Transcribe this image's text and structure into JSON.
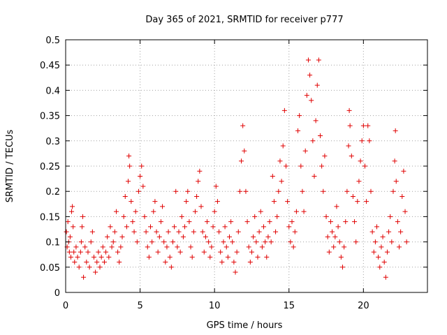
{
  "chart_data": {
    "type": "scatter",
    "title": "Day 365 of 2021, SRMTID for receiver p777",
    "xlabel": "GPS time / hours",
    "ylabel": "SRMTID / TECUs",
    "xlim": [
      0,
      24.3
    ],
    "ylim": [
      0,
      0.5
    ],
    "x_ticks": [
      0,
      5,
      10,
      15,
      20
    ],
    "x_tick_labels": [
      "0",
      "5",
      "10",
      "15",
      "20"
    ],
    "y_ticks": [
      0,
      0.05,
      0.1,
      0.15,
      0.2,
      0.25,
      0.3,
      0.35,
      0.4,
      0.45,
      0.5
    ],
    "y_tick_labels": [
      "0",
      "0.05",
      "0.1",
      "0.15",
      "0.2",
      "0.25",
      "0.3",
      "0.35",
      "0.4",
      "0.45",
      "0.5"
    ],
    "grid": true,
    "marker": "+",
    "color": "#e00000",
    "series": [
      {
        "name": "SRMTID",
        "points": [
          [
            0.05,
            0.12
          ],
          [
            0.1,
            0.09
          ],
          [
            0.15,
            0.14
          ],
          [
            0.2,
            0.1
          ],
          [
            0.25,
            0.08
          ],
          [
            0.3,
            0.11
          ],
          [
            0.35,
            0.07
          ],
          [
            0.4,
            0.16
          ],
          [
            0.45,
            0.17
          ],
          [
            0.5,
            0.13
          ],
          [
            0.55,
            0.08
          ],
          [
            0.6,
            0.06
          ],
          [
            0.7,
            0.09
          ],
          [
            0.8,
            0.07
          ],
          [
            0.9,
            0.05
          ],
          [
            1.0,
            0.08
          ],
          [
            1.05,
            0.1
          ],
          [
            1.1,
            0.13
          ],
          [
            1.15,
            0.15
          ],
          [
            1.2,
            0.03
          ],
          [
            1.3,
            0.09
          ],
          [
            1.4,
            0.06
          ],
          [
            1.5,
            0.08
          ],
          [
            1.6,
            0.05
          ],
          [
            1.7,
            0.1
          ],
          [
            1.8,
            0.12
          ],
          [
            1.9,
            0.07
          ],
          [
            2.0,
            0.04
          ],
          [
            2.1,
            0.06
          ],
          [
            2.2,
            0.08
          ],
          [
            2.3,
            0.05
          ],
          [
            2.4,
            0.07
          ],
          [
            2.5,
            0.09
          ],
          [
            2.6,
            0.06
          ],
          [
            2.7,
            0.08
          ],
          [
            2.8,
            0.11
          ],
          [
            2.9,
            0.07
          ],
          [
            3.0,
            0.13
          ],
          [
            3.1,
            0.09
          ],
          [
            3.2,
            0.1
          ],
          [
            3.3,
            0.12
          ],
          [
            3.4,
            0.16
          ],
          [
            3.5,
            0.08
          ],
          [
            3.6,
            0.06
          ],
          [
            3.7,
            0.09
          ],
          [
            3.8,
            0.11
          ],
          [
            3.9,
            0.15
          ],
          [
            4.0,
            0.19
          ],
          [
            4.1,
            0.13
          ],
          [
            4.2,
            0.22
          ],
          [
            4.25,
            0.27
          ],
          [
            4.3,
            0.25
          ],
          [
            4.4,
            0.18
          ],
          [
            4.5,
            0.14
          ],
          [
            4.6,
            0.12
          ],
          [
            4.7,
            0.16
          ],
          [
            4.8,
            0.1
          ],
          [
            4.9,
            0.2
          ],
          [
            5.0,
            0.23
          ],
          [
            5.1,
            0.25
          ],
          [
            5.2,
            0.21
          ],
          [
            5.3,
            0.15
          ],
          [
            5.4,
            0.12
          ],
          [
            5.5,
            0.09
          ],
          [
            5.6,
            0.07
          ],
          [
            5.7,
            0.13
          ],
          [
            5.8,
            0.1
          ],
          [
            5.9,
            0.16
          ],
          [
            6.0,
            0.18
          ],
          [
            6.1,
            0.12
          ],
          [
            6.2,
            0.08
          ],
          [
            6.3,
            0.11
          ],
          [
            6.4,
            0.14
          ],
          [
            6.5,
            0.17
          ],
          [
            6.6,
            0.1
          ],
          [
            6.7,
            0.06
          ],
          [
            6.8,
            0.09
          ],
          [
            6.9,
            0.12
          ],
          [
            7.0,
            0.07
          ],
          [
            7.1,
            0.05
          ],
          [
            7.2,
            0.1
          ],
          [
            7.3,
            0.13
          ],
          [
            7.4,
            0.2
          ],
          [
            7.5,
            0.09
          ],
          [
            7.6,
            0.12
          ],
          [
            7.7,
            0.08
          ],
          [
            7.8,
            0.15
          ],
          [
            7.9,
            0.11
          ],
          [
            8.0,
            0.13
          ],
          [
            8.1,
            0.18
          ],
          [
            8.2,
            0.2
          ],
          [
            8.3,
            0.14
          ],
          [
            8.4,
            0.09
          ],
          [
            8.5,
            0.07
          ],
          [
            8.6,
            0.12
          ],
          [
            8.7,
            0.16
          ],
          [
            8.8,
            0.19
          ],
          [
            8.9,
            0.22
          ],
          [
            9.0,
            0.24
          ],
          [
            9.1,
            0.17
          ],
          [
            9.2,
            0.12
          ],
          [
            9.3,
            0.08
          ],
          [
            9.4,
            0.11
          ],
          [
            9.5,
            0.14
          ],
          [
            9.6,
            0.1
          ],
          [
            9.7,
            0.07
          ],
          [
            9.8,
            0.09
          ],
          [
            9.9,
            0.13
          ],
          [
            10.0,
            0.16
          ],
          [
            10.1,
            0.21
          ],
          [
            10.2,
            0.18
          ],
          [
            10.3,
            0.12
          ],
          [
            10.4,
            0.08
          ],
          [
            10.5,
            0.06
          ],
          [
            10.6,
            0.1
          ],
          [
            10.7,
            0.13
          ],
          [
            10.8,
            0.09
          ],
          [
            10.9,
            0.07
          ],
          [
            11.0,
            0.11
          ],
          [
            11.1,
            0.14
          ],
          [
            11.2,
            0.1
          ],
          [
            11.3,
            0.06
          ],
          [
            11.4,
            0.04
          ],
          [
            11.5,
            0.08
          ],
          [
            11.6,
            0.12
          ],
          [
            11.7,
            0.2
          ],
          [
            11.8,
            0.26
          ],
          [
            11.9,
            0.33
          ],
          [
            12.0,
            0.28
          ],
          [
            12.1,
            0.2
          ],
          [
            12.2,
            0.14
          ],
          [
            12.3,
            0.09
          ],
          [
            12.4,
            0.06
          ],
          [
            12.5,
            0.08
          ],
          [
            12.6,
            0.11
          ],
          [
            12.7,
            0.15
          ],
          [
            12.8,
            0.1
          ],
          [
            12.9,
            0.07
          ],
          [
            13.0,
            0.12
          ],
          [
            13.1,
            0.16
          ],
          [
            13.2,
            0.09
          ],
          [
            13.3,
            0.13
          ],
          [
            13.4,
            0.1
          ],
          [
            13.5,
            0.07
          ],
          [
            13.6,
            0.11
          ],
          [
            13.7,
            0.14
          ],
          [
            13.8,
            0.1
          ],
          [
            13.9,
            0.23
          ],
          [
            14.0,
            0.18
          ],
          [
            14.1,
            0.12
          ],
          [
            14.2,
            0.15
          ],
          [
            14.3,
            0.2
          ],
          [
            14.4,
            0.26
          ],
          [
            14.5,
            0.22
          ],
          [
            14.6,
            0.29
          ],
          [
            14.7,
            0.36
          ],
          [
            14.8,
            0.25
          ],
          [
            14.9,
            0.18
          ],
          [
            15.0,
            0.13
          ],
          [
            15.1,
            0.1
          ],
          [
            15.2,
            0.14
          ],
          [
            15.3,
            0.09
          ],
          [
            15.4,
            0.12
          ],
          [
            15.5,
            0.16
          ],
          [
            15.6,
            0.32
          ],
          [
            15.7,
            0.35
          ],
          [
            15.8,
            0.25
          ],
          [
            15.9,
            0.2
          ],
          [
            16.0,
            0.16
          ],
          [
            16.1,
            0.28
          ],
          [
            16.2,
            0.39
          ],
          [
            16.3,
            0.46
          ],
          [
            16.4,
            0.43
          ],
          [
            16.5,
            0.38
          ],
          [
            16.6,
            0.3
          ],
          [
            16.7,
            0.23
          ],
          [
            16.8,
            0.34
          ],
          [
            16.9,
            0.41
          ],
          [
            17.0,
            0.46
          ],
          [
            17.1,
            0.31
          ],
          [
            17.2,
            0.25
          ],
          [
            17.3,
            0.2
          ],
          [
            17.4,
            0.27
          ],
          [
            17.5,
            0.15
          ],
          [
            17.6,
            0.11
          ],
          [
            17.7,
            0.08
          ],
          [
            17.8,
            0.14
          ],
          [
            17.9,
            0.12
          ],
          [
            18.0,
            0.09
          ],
          [
            18.1,
            0.11
          ],
          [
            18.2,
            0.17
          ],
          [
            18.3,
            0.13
          ],
          [
            18.4,
            0.1
          ],
          [
            18.5,
            0.07
          ],
          [
            18.6,
            0.05
          ],
          [
            18.7,
            0.09
          ],
          [
            18.8,
            0.14
          ],
          [
            18.9,
            0.2
          ],
          [
            19.0,
            0.29
          ],
          [
            19.05,
            0.36
          ],
          [
            19.1,
            0.33
          ],
          [
            19.2,
            0.27
          ],
          [
            19.3,
            0.19
          ],
          [
            19.4,
            0.14
          ],
          [
            19.5,
            0.1
          ],
          [
            19.6,
            0.18
          ],
          [
            19.7,
            0.22
          ],
          [
            19.8,
            0.26
          ],
          [
            19.9,
            0.3
          ],
          [
            20.0,
            0.33
          ],
          [
            20.1,
            0.25
          ],
          [
            20.2,
            0.18
          ],
          [
            20.3,
            0.33
          ],
          [
            20.4,
            0.3
          ],
          [
            20.5,
            0.2
          ],
          [
            20.6,
            0.12
          ],
          [
            20.7,
            0.08
          ],
          [
            20.8,
            0.1
          ],
          [
            20.9,
            0.13
          ],
          [
            21.0,
            0.07
          ],
          [
            21.1,
            0.05
          ],
          [
            21.2,
            0.09
          ],
          [
            21.3,
            0.11
          ],
          [
            21.4,
            0.06
          ],
          [
            21.5,
            0.03
          ],
          [
            21.6,
            0.08
          ],
          [
            21.7,
            0.12
          ],
          [
            21.8,
            0.15
          ],
          [
            21.9,
            0.1
          ],
          [
            22.0,
            0.2
          ],
          [
            22.1,
            0.26
          ],
          [
            22.15,
            0.32
          ],
          [
            22.2,
            0.22
          ],
          [
            22.3,
            0.14
          ],
          [
            22.4,
            0.09
          ],
          [
            22.5,
            0.12
          ],
          [
            22.6,
            0.19
          ],
          [
            22.7,
            0.24
          ],
          [
            22.8,
            0.16
          ],
          [
            22.9,
            0.1
          ]
        ]
      }
    ]
  }
}
